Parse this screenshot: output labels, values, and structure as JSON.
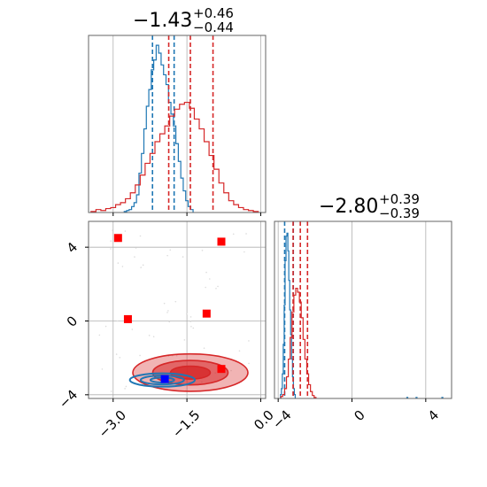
{
  "chart_data": [
    {
      "panel": "top-left",
      "type": "histogram",
      "title": {
        "value": "−1.43",
        "upper": "+0.46",
        "lower": "−0.44"
      },
      "xlim": [
        -3.5,
        0.1
      ],
      "series": [
        {
          "color": "#1f77b4",
          "bins": [
            [
              -2.75,
              1
            ],
            [
              -2.7,
              2
            ],
            [
              -2.65,
              3
            ],
            [
              -2.6,
              6
            ],
            [
              -2.55,
              10
            ],
            [
              -2.5,
              18
            ],
            [
              -2.45,
              40
            ],
            [
              -2.4,
              60
            ],
            [
              -2.35,
              85
            ],
            [
              -2.3,
              108
            ],
            [
              -2.25,
              125
            ],
            [
              -2.2,
              145
            ],
            [
              -2.15,
              155
            ],
            [
              -2.1,
              170
            ],
            [
              -2.05,
              162
            ],
            [
              -2.0,
              150
            ],
            [
              -1.95,
              140
            ],
            [
              -1.9,
              130
            ],
            [
              -1.85,
              112
            ],
            [
              -1.8,
              100
            ],
            [
              -1.75,
              88
            ],
            [
              -1.7,
              70
            ],
            [
              -1.65,
              52
            ],
            [
              -1.6,
              35
            ],
            [
              -1.55,
              22
            ],
            [
              -1.5,
              12
            ],
            [
              -1.45,
              6
            ],
            [
              -1.4,
              3
            ]
          ],
          "quantile_lines": [
            -2.2,
            -1.76
          ]
        },
        {
          "color": "#d62728",
          "bins": [
            [
              -3.4,
              1
            ],
            [
              -3.3,
              3
            ],
            [
              -3.2,
              2
            ],
            [
              -3.1,
              4
            ],
            [
              -3.0,
              5
            ],
            [
              -2.9,
              8
            ],
            [
              -2.8,
              10
            ],
            [
              -2.7,
              14
            ],
            [
              -2.6,
              20
            ],
            [
              -2.5,
              28
            ],
            [
              -2.4,
              38
            ],
            [
              -2.3,
              50
            ],
            [
              -2.2,
              60
            ],
            [
              -2.1,
              72
            ],
            [
              -2.0,
              80
            ],
            [
              -1.9,
              88
            ],
            [
              -1.8,
              98
            ],
            [
              -1.7,
              105
            ],
            [
              -1.6,
              110
            ],
            [
              -1.5,
              112
            ],
            [
              -1.4,
              106
            ],
            [
              -1.3,
              95
            ],
            [
              -1.2,
              85
            ],
            [
              -1.1,
              72
            ],
            [
              -1.0,
              58
            ],
            [
              -0.9,
              44
            ],
            [
              -0.8,
              30
            ],
            [
              -0.7,
              20
            ],
            [
              -0.6,
              12
            ],
            [
              -0.5,
              8
            ],
            [
              -0.4,
              5
            ],
            [
              -0.3,
              3
            ],
            [
              -0.2,
              2
            ],
            [
              -0.1,
              1
            ]
          ],
          "quantile_lines": [
            -1.87,
            -1.43,
            -0.97
          ]
        }
      ]
    },
    {
      "panel": "bottom-left",
      "type": "contour",
      "xlim": [
        -3.5,
        0.1
      ],
      "ylim": [
        -4.2,
        5.4
      ],
      "xticks": [
        "−3.0",
        "−1.5",
        "0.0"
      ],
      "yticks": [
        "4",
        "0",
        "−4"
      ],
      "red_contours": {
        "center": [
          -1.43,
          -2.8
        ],
        "sigma": [
          0.45,
          0.39
        ]
      },
      "blue_contours": {
        "center": [
          -2.0,
          -3.2
        ],
        "sigma": [
          0.22,
          0.12
        ]
      },
      "red_markers": [
        [
          -2.9,
          4.5
        ],
        [
          -2.7,
          0.1
        ],
        [
          -0.8,
          4.3
        ],
        [
          -1.1,
          0.4
        ],
        [
          -0.8,
          -2.6
        ]
      ],
      "blue_markers": [
        [
          -1.95,
          -3.15
        ]
      ]
    },
    {
      "panel": "bottom-right",
      "type": "histogram",
      "title": {
        "value": "−2.80",
        "upper": "+0.39",
        "lower": "−0.39"
      },
      "xlim": [
        -4.2,
        5.4
      ],
      "xticks": [
        "−4",
        "0",
        "4"
      ],
      "series": [
        {
          "color": "#1f77b4",
          "bins": [
            [
              -3.85,
              4
            ],
            [
              -3.8,
              10
            ],
            [
              -3.75,
              25
            ],
            [
              -3.7,
              55
            ],
            [
              -3.65,
              95
            ],
            [
              -3.6,
              140
            ],
            [
              -3.55,
              165
            ],
            [
              -3.5,
              168
            ],
            [
              -3.45,
              150
            ],
            [
              -3.4,
              120
            ],
            [
              -3.35,
              90
            ],
            [
              -3.3,
              65
            ],
            [
              -3.25,
              40
            ],
            [
              -3.2,
              22
            ],
            [
              -3.15,
              10
            ],
            [
              -3.1,
              4
            ],
            [
              3.0,
              1
            ],
            [
              3.5,
              1
            ],
            [
              4.9,
              1
            ]
          ],
          "quantile_lines": [
            -3.65,
            -3.18
          ]
        },
        {
          "color": "#d62728",
          "bins": [
            [
              -3.8,
              2
            ],
            [
              -3.7,
              4
            ],
            [
              -3.6,
              10
            ],
            [
              -3.5,
              22
            ],
            [
              -3.4,
              40
            ],
            [
              -3.3,
              62
            ],
            [
              -3.2,
              88
            ],
            [
              -3.1,
              105
            ],
            [
              -3.0,
              112
            ],
            [
              -2.9,
              108
            ],
            [
              -2.8,
              98
            ],
            [
              -2.7,
              82
            ],
            [
              -2.6,
              60
            ],
            [
              -2.5,
              40
            ],
            [
              -2.4,
              25
            ],
            [
              -2.3,
              14
            ],
            [
              -2.2,
              7
            ],
            [
              -2.1,
              3
            ],
            [
              -2.0,
              1
            ]
          ],
          "quantile_lines": [
            -3.19,
            -2.8,
            -2.41
          ]
        }
      ]
    }
  ]
}
